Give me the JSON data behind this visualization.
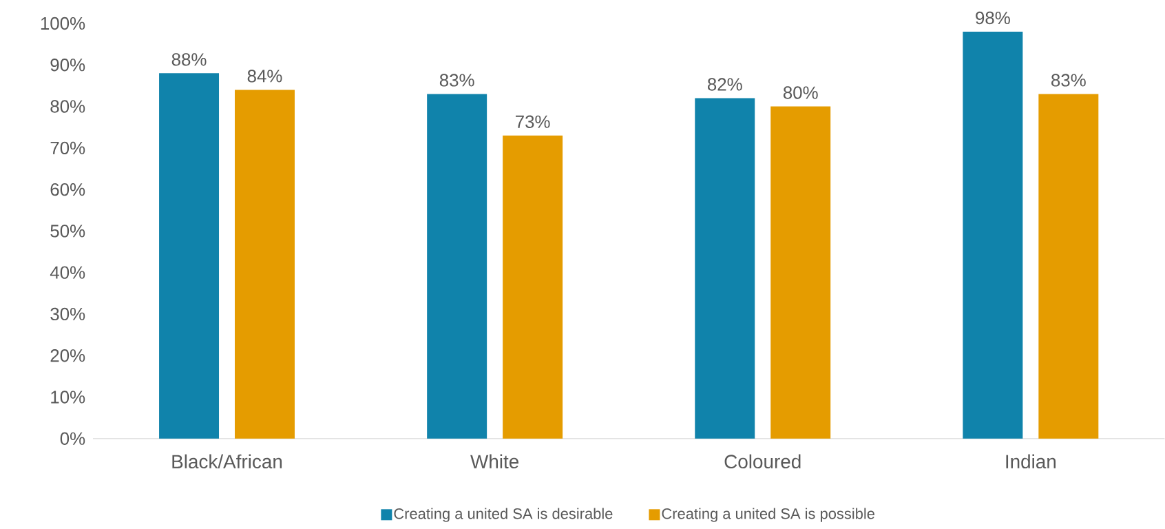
{
  "chart_data": {
    "type": "bar",
    "categories": [
      "Black/African",
      "White",
      "Coloured",
      "Indian"
    ],
    "series": [
      {
        "name": "Creating a united SA is desirable",
        "color": "#1083ab",
        "values": [
          88,
          83,
          82,
          98
        ],
        "value_labels": [
          "88%",
          "83%",
          "82%",
          "98%"
        ]
      },
      {
        "name": "Creating a united SA is possible",
        "color": "#e59c00",
        "values": [
          84,
          73,
          80,
          83
        ],
        "value_labels": [
          "84%",
          "73%",
          "80%",
          "83%"
        ]
      }
    ],
    "ylim": [
      0,
      100
    ],
    "yticks": [
      {
        "value": 0,
        "label": "0%"
      },
      {
        "value": 10,
        "label": "10%"
      },
      {
        "value": 20,
        "label": "20%"
      },
      {
        "value": 30,
        "label": "30%"
      },
      {
        "value": 40,
        "label": "40%"
      },
      {
        "value": 50,
        "label": "50%"
      },
      {
        "value": 60,
        "label": "60%"
      },
      {
        "value": 70,
        "label": "70%"
      },
      {
        "value": 80,
        "label": "80%"
      },
      {
        "value": 90,
        "label": "90%"
      },
      {
        "value": 100,
        "label": "100%"
      }
    ],
    "grid": false,
    "legend": "bottom"
  }
}
